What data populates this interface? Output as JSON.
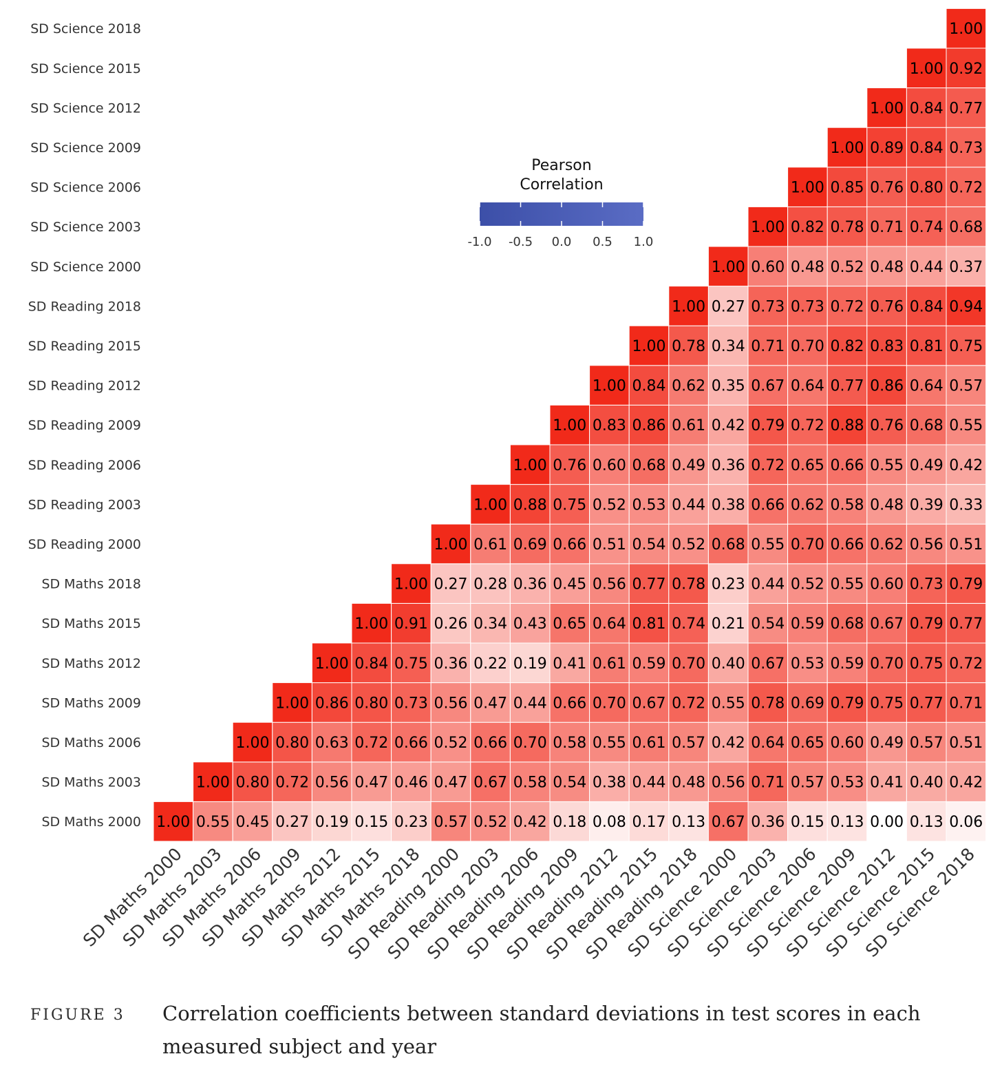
{
  "chart_data": {
    "type": "heatmap",
    "variables": [
      "SD Maths 2000",
      "SD Maths 2003",
      "SD Maths 2006",
      "SD Maths 2009",
      "SD Maths 2012",
      "SD Maths 2015",
      "SD Maths 2018",
      "SD Reading 2000",
      "SD Reading 2003",
      "SD Reading 2006",
      "SD Reading 2009",
      "SD Reading 2012",
      "SD Reading 2015",
      "SD Reading 2018",
      "SD Science 2000",
      "SD Science 2003",
      "SD Science 2006",
      "SD Science 2009",
      "SD Science 2012",
      "SD Science 2015",
      "SD Science 2018"
    ],
    "matrix_upper_by_row": [
      [
        1.0,
        0.55,
        0.45,
        0.27,
        0.19,
        0.15,
        0.23,
        0.57,
        0.52,
        0.42,
        0.18,
        0.08,
        0.17,
        0.13,
        0.67,
        0.36,
        0.15,
        0.13,
        0.0,
        0.13,
        0.06
      ],
      [
        1.0,
        0.8,
        0.72,
        0.56,
        0.47,
        0.46,
        0.47,
        0.67,
        0.58,
        0.54,
        0.38,
        0.44,
        0.48,
        0.56,
        0.71,
        0.57,
        0.53,
        0.41,
        0.4,
        0.42
      ],
      [
        1.0,
        0.8,
        0.63,
        0.72,
        0.66,
        0.52,
        0.66,
        0.7,
        0.58,
        0.55,
        0.61,
        0.57,
        0.42,
        0.64,
        0.65,
        0.6,
        0.49,
        0.57,
        0.51
      ],
      [
        1.0,
        0.86,
        0.8,
        0.73,
        0.56,
        0.47,
        0.44,
        0.66,
        0.7,
        0.67,
        0.72,
        0.55,
        0.78,
        0.69,
        0.79,
        0.75,
        0.77,
        0.71
      ],
      [
        1.0,
        0.84,
        0.75,
        0.36,
        0.22,
        0.19,
        0.41,
        0.61,
        0.59,
        0.7,
        0.4,
        0.67,
        0.53,
        0.59,
        0.7,
        0.75,
        0.72
      ],
      [
        1.0,
        0.91,
        0.26,
        0.34,
        0.43,
        0.65,
        0.64,
        0.81,
        0.74,
        0.21,
        0.54,
        0.59,
        0.68,
        0.67,
        0.79,
        0.77
      ],
      [
        1.0,
        0.27,
        0.28,
        0.36,
        0.45,
        0.56,
        0.77,
        0.78,
        0.23,
        0.44,
        0.52,
        0.55,
        0.6,
        0.73,
        0.79
      ],
      [
        1.0,
        0.61,
        0.69,
        0.66,
        0.51,
        0.54,
        0.52,
        0.68,
        0.55,
        0.7,
        0.66,
        0.62,
        0.56,
        0.51
      ],
      [
        1.0,
        0.88,
        0.75,
        0.52,
        0.53,
        0.44,
        0.38,
        0.66,
        0.62,
        0.58,
        0.48,
        0.39,
        0.33
      ],
      [
        1.0,
        0.76,
        0.6,
        0.68,
        0.49,
        0.36,
        0.72,
        0.65,
        0.66,
        0.55,
        0.49,
        0.42
      ],
      [
        1.0,
        0.83,
        0.86,
        0.61,
        0.42,
        0.79,
        0.72,
        0.88,
        0.76,
        0.68,
        0.55
      ],
      [
        1.0,
        0.84,
        0.62,
        0.35,
        0.67,
        0.64,
        0.77,
        0.86,
        0.64,
        0.57
      ],
      [
        1.0,
        0.78,
        0.34,
        0.71,
        0.7,
        0.82,
        0.83,
        0.81,
        0.75
      ],
      [
        1.0,
        0.27,
        0.73,
        0.73,
        0.72,
        0.76,
        0.84,
        0.94
      ],
      [
        1.0,
        0.6,
        0.48,
        0.52,
        0.48,
        0.44,
        0.37
      ],
      [
        1.0,
        0.82,
        0.78,
        0.71,
        0.74,
        0.68
      ],
      [
        1.0,
        0.85,
        0.76,
        0.8,
        0.72
      ],
      [
        1.0,
        0.89,
        0.84,
        0.73
      ],
      [
        1.0,
        0.84,
        0.77
      ],
      [
        1.0,
        0.92
      ],
      [
        1.0
      ]
    ],
    "legend": {
      "title_lines": [
        "Pearson",
        "Correlation"
      ],
      "ticks": [
        "-1.0",
        "-0.5",
        "0.0",
        "0.5",
        "1.0"
      ],
      "range": [
        -1.0,
        1.0
      ]
    },
    "colors": {
      "low": "#3c4fa8",
      "mid": "#ffffff",
      "high": "#f12a1a"
    }
  },
  "caption": {
    "label": "FIGURE 3",
    "text": "Correlation coefficients between standard deviations in test scores in each measured subject and year"
  }
}
